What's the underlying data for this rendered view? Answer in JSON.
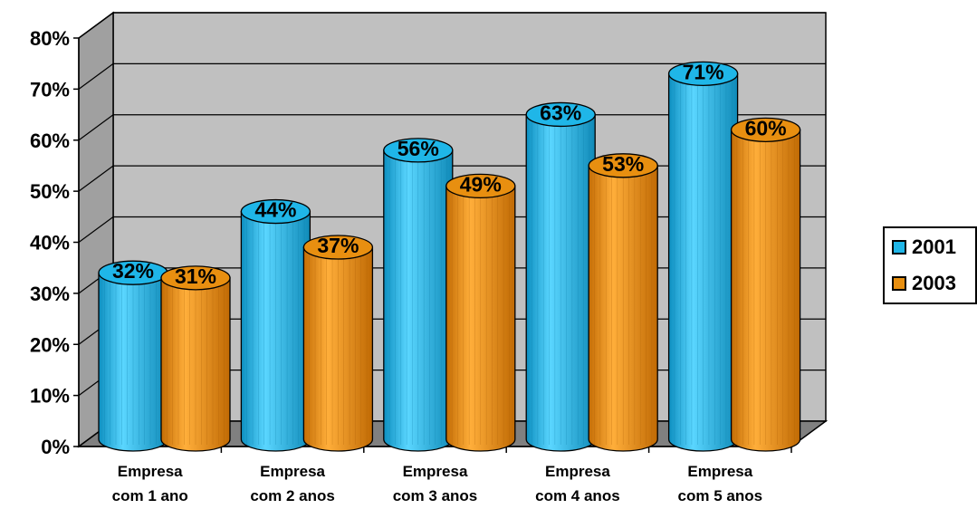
{
  "chart_data": {
    "type": "bar",
    "style": "3d-cylinder",
    "categories": [
      [
        "Empresa",
        "com 1 ano"
      ],
      [
        "Empresa",
        "com 2 anos"
      ],
      [
        "Empresa",
        "com 3 anos"
      ],
      [
        "Empresa",
        "com 4 anos"
      ],
      [
        "Empresa",
        "com 5 anos"
      ]
    ],
    "series": [
      {
        "name": "2001",
        "color": "#1fb6e8",
        "values": [
          32,
          44,
          56,
          63,
          71
        ],
        "labels": [
          "32%",
          "44%",
          "56%",
          "63%",
          "71%"
        ]
      },
      {
        "name": "2003",
        "color": "#e88f10",
        "values": [
          31,
          37,
          49,
          53,
          60
        ],
        "labels": [
          "31%",
          "37%",
          "49%",
          "53%",
          "60%"
        ]
      }
    ],
    "yticks": [
      "0%",
      "10%",
      "20%",
      "30%",
      "40%",
      "50%",
      "60%",
      "70%",
      "80%"
    ],
    "ylim": [
      0,
      80
    ],
    "grid": true,
    "wall_color": "#c0c0c0",
    "legend_position": "right"
  }
}
